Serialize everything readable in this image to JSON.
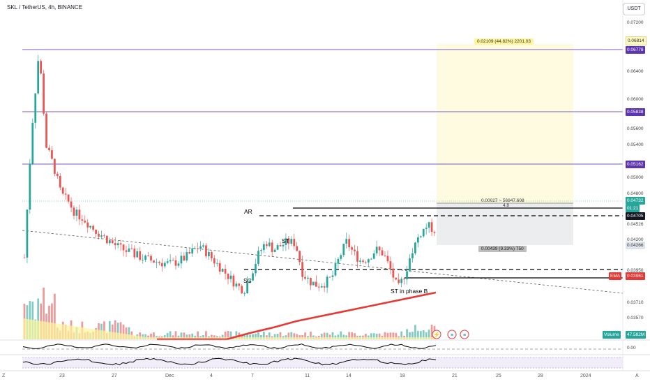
{
  "header": {
    "title": "SKL / TetherUS, 4h, BINANCE",
    "currency": "USDT"
  },
  "chart_data": {
    "type": "candlestick",
    "symbol": "SKL / TetherUS",
    "timeframe": "4h",
    "exchange": "BINANCE",
    "y_ticks": [
      "0.07200",
      "0.06814",
      "0.06400",
      "0.06000",
      "0.05600",
      "0.05400",
      "0.05000",
      "0.04800",
      "0.04526",
      "0.04200",
      "0.03950",
      "0.03710",
      "0.03570"
    ],
    "x_ticks": [
      "23",
      "27",
      "Dec",
      "4",
      "7",
      "11",
      "14",
      "18",
      "21",
      "25",
      "28",
      "2024"
    ],
    "x_edge": [
      "Z",
      "A"
    ],
    "ylim": [
      0.0338,
      0.0742
    ],
    "price_path": [
      0.044,
      0.06,
      0.07,
      0.058,
      0.0555,
      0.052,
      0.051,
      0.0495,
      0.049,
      0.048,
      0.0472,
      0.0465,
      0.0458,
      0.0452,
      0.0448,
      0.0444,
      0.044,
      0.0437,
      0.0435,
      0.0433,
      0.0432,
      0.0435,
      0.044,
      0.0448,
      0.0455,
      0.0445,
      0.0435,
      0.0425,
      0.0415,
      0.0405,
      0.0399,
      0.042,
      0.0445,
      0.046,
      0.045,
      0.0455,
      0.046,
      0.0458,
      0.042,
      0.041,
      0.0405,
      0.0408,
      0.0415,
      0.044,
      0.046,
      0.0445,
      0.0435,
      0.044,
      0.045,
      0.0445,
      0.0425,
      0.04,
      0.042,
      0.045,
      0.047,
      0.048,
      0.0475
    ],
    "horizontal_levels": [
      0.06778,
      0.05838,
      0.05162
    ],
    "dashed_levels": [
      0.04705,
      0.0401
    ],
    "ema_path": [
      0.03,
      0.031,
      0.0322,
      0.0335,
      0.0345,
      0.0352,
      0.036,
      0.0366,
      0.0372,
      0.0378,
      0.0384,
      0.039,
      0.0396
    ],
    "trendline": [
      [
        0.0445
      ],
      [
        0.0375
      ]
    ],
    "long_position": {
      "entry": 0.04732,
      "target": 0.06814,
      "stop": 0.04266
    }
  },
  "price_tags": {
    "t1": "0.06814",
    "t2": "0.06778",
    "t3": "0.05838",
    "t4": "0.05162",
    "t5": "0.04732",
    "t5b": "01:21",
    "t6": "0.04705",
    "t7": "0.04266",
    "t8": "0.03961",
    "ema_label": "EMA",
    "volume_label": "Volume",
    "volume_value": "47.582M"
  },
  "position_labels": {
    "target": "0.02109 (44.82%) 2201.03",
    "entry": "0.00027 ~ 56947.608",
    "ratio": "4.8",
    "stop": "0.00439 (9.33%) 750"
  },
  "annotations": {
    "ar": "AR",
    "st": "ST",
    "sc": "SC",
    "st_b": "ST in phase B"
  },
  "oscillators": {
    "zero": "0.00"
  },
  "colors": {
    "up": "#26a69a",
    "down": "#ef5350",
    "level": "#7e57c2",
    "ema": "#e53935",
    "target_zone": "#fffbe0",
    "stop_zone": "#e3e5e8"
  }
}
